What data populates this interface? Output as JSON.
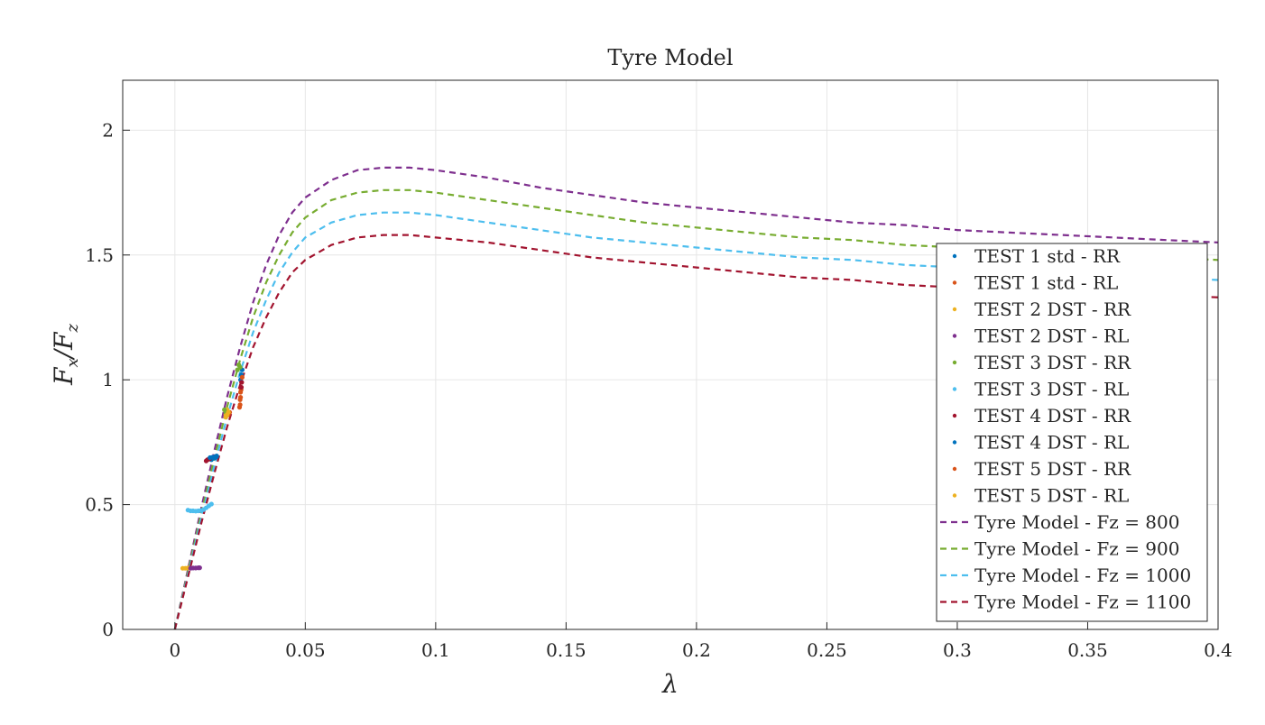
{
  "chart_data": {
    "type": "line",
    "title": "Tyre Model",
    "xlabel": "λ",
    "ylabel": "Fx/Fz",
    "xlim": [
      -0.02,
      0.4
    ],
    "ylim": [
      0,
      2.2
    ],
    "xticks": [
      0,
      0.05,
      0.1,
      0.15,
      0.2,
      0.25,
      0.3,
      0.35,
      0.4
    ],
    "xtick_labels": [
      "0",
      "0.05",
      "0.1",
      "0.15",
      "0.2",
      "0.25",
      "0.3",
      "0.35",
      "0.4"
    ],
    "yticks": [
      0,
      0.5,
      1,
      1.5,
      2
    ],
    "ytick_labels": [
      "0",
      "0.5",
      "1",
      "1.5",
      "2"
    ],
    "grid": true,
    "legend_position": "right",
    "scatter_series": [
      {
        "name": "TEST 1 std - RR",
        "color": "#0072BD",
        "points": [
          [
            0.0145,
            0.685
          ],
          [
            0.015,
            0.69
          ],
          [
            0.0155,
            0.692
          ],
          [
            0.016,
            0.695
          ],
          [
            0.014,
            0.68
          ],
          [
            0.0255,
            1.02
          ],
          [
            0.0258,
            1.04
          ],
          [
            0.0252,
            1.0
          ]
        ]
      },
      {
        "name": "TEST 1 std - RL",
        "color": "#D95319",
        "points": [
          [
            0.025,
            0.9
          ],
          [
            0.0252,
            0.93
          ],
          [
            0.0254,
            0.96
          ],
          [
            0.0256,
            0.99
          ],
          [
            0.0258,
            1.01
          ],
          [
            0.0205,
            0.86
          ],
          [
            0.021,
            0.87
          ]
        ]
      },
      {
        "name": "TEST 2 DST - RR",
        "color": "#EDB120",
        "points": [
          [
            0.003,
            0.245
          ],
          [
            0.004,
            0.245
          ],
          [
            0.005,
            0.246
          ],
          [
            0.0195,
            0.86
          ],
          [
            0.02,
            0.88
          ],
          [
            0.0205,
            0.87
          ]
        ]
      },
      {
        "name": "TEST 2 DST - RL",
        "color": "#7E2F8E",
        "points": [
          [
            0.006,
            0.245
          ],
          [
            0.007,
            0.246
          ],
          [
            0.008,
            0.246
          ],
          [
            0.009,
            0.247
          ],
          [
            0.0095,
            0.247
          ]
        ]
      },
      {
        "name": "TEST 3 DST - RR",
        "color": "#77AC30",
        "points": [
          [
            0.024,
            1.04
          ],
          [
            0.0245,
            1.06
          ],
          [
            0.025,
            1.05
          ],
          [
            0.019,
            0.88
          ],
          [
            0.0195,
            0.87
          ]
        ]
      },
      {
        "name": "TEST 3 DST - RL",
        "color": "#4DBEEE",
        "points": [
          [
            0.005,
            0.478
          ],
          [
            0.006,
            0.475
          ],
          [
            0.007,
            0.475
          ],
          [
            0.008,
            0.474
          ],
          [
            0.009,
            0.475
          ],
          [
            0.01,
            0.476
          ],
          [
            0.011,
            0.48
          ],
          [
            0.012,
            0.487
          ],
          [
            0.013,
            0.495
          ],
          [
            0.014,
            0.502
          ]
        ]
      },
      {
        "name": "TEST 4 DST - RR",
        "color": "#A2142F",
        "points": [
          [
            0.012,
            0.675
          ],
          [
            0.0125,
            0.68
          ],
          [
            0.013,
            0.682
          ],
          [
            0.0135,
            0.685
          ],
          [
            0.0255,
            0.97
          ],
          [
            0.0256,
            0.99
          ]
        ]
      },
      {
        "name": "TEST 4 DST - RL",
        "color": "#0072BD",
        "points": [
          [
            0.0135,
            0.688
          ],
          [
            0.0145,
            0.69
          ],
          [
            0.0155,
            0.688
          ],
          [
            0.016,
            0.692
          ]
        ]
      },
      {
        "name": "TEST 5 DST - RR",
        "color": "#D95319",
        "points": [
          [
            0.0248,
            0.89
          ],
          [
            0.025,
            0.92
          ],
          [
            0.0252,
            0.95
          ]
        ]
      },
      {
        "name": "TEST 5 DST - RL",
        "color": "#EDB120",
        "points": [
          [
            0.0195,
            0.85
          ],
          [
            0.02,
            0.86
          ],
          [
            0.0205,
            0.87
          ]
        ]
      }
    ],
    "model_series": [
      {
        "name": "Tyre Model - Fz = 800",
        "color": "#7E2F8E",
        "x": [
          0,
          0.005,
          0.01,
          0.015,
          0.02,
          0.025,
          0.03,
          0.035,
          0.04,
          0.045,
          0.05,
          0.06,
          0.07,
          0.08,
          0.09,
          0.1,
          0.12,
          0.14,
          0.16,
          0.18,
          0.2,
          0.22,
          0.24,
          0.26,
          0.28,
          0.3,
          0.32,
          0.34,
          0.36,
          0.38,
          0.4
        ],
        "y": [
          0,
          0.24,
          0.48,
          0.71,
          0.93,
          1.13,
          1.31,
          1.46,
          1.58,
          1.67,
          1.73,
          1.8,
          1.84,
          1.85,
          1.85,
          1.84,
          1.81,
          1.77,
          1.74,
          1.71,
          1.69,
          1.67,
          1.65,
          1.63,
          1.62,
          1.6,
          1.59,
          1.58,
          1.57,
          1.56,
          1.55
        ]
      },
      {
        "name": "Tyre Model - Fz = 900",
        "color": "#77AC30",
        "x": [
          0,
          0.005,
          0.01,
          0.015,
          0.02,
          0.025,
          0.03,
          0.035,
          0.04,
          0.045,
          0.05,
          0.06,
          0.07,
          0.08,
          0.09,
          0.1,
          0.12,
          0.14,
          0.16,
          0.18,
          0.2,
          0.22,
          0.24,
          0.26,
          0.28,
          0.3,
          0.32,
          0.34,
          0.36,
          0.38,
          0.4
        ],
        "y": [
          0,
          0.23,
          0.46,
          0.68,
          0.89,
          1.08,
          1.25,
          1.39,
          1.5,
          1.59,
          1.65,
          1.72,
          1.75,
          1.76,
          1.76,
          1.75,
          1.72,
          1.69,
          1.66,
          1.63,
          1.61,
          1.59,
          1.57,
          1.56,
          1.54,
          1.53,
          1.52,
          1.51,
          1.5,
          1.49,
          1.48
        ]
      },
      {
        "name": "Tyre Model - Fz = 1000",
        "color": "#4DBEEE",
        "x": [
          0,
          0.005,
          0.01,
          0.015,
          0.02,
          0.025,
          0.03,
          0.035,
          0.04,
          0.045,
          0.05,
          0.06,
          0.07,
          0.08,
          0.09,
          0.1,
          0.12,
          0.14,
          0.16,
          0.18,
          0.2,
          0.22,
          0.24,
          0.26,
          0.28,
          0.3,
          0.32,
          0.34,
          0.36,
          0.38,
          0.4
        ],
        "y": [
          0,
          0.22,
          0.44,
          0.65,
          0.85,
          1.03,
          1.19,
          1.32,
          1.43,
          1.51,
          1.57,
          1.63,
          1.66,
          1.67,
          1.67,
          1.66,
          1.63,
          1.6,
          1.57,
          1.55,
          1.53,
          1.51,
          1.49,
          1.48,
          1.46,
          1.45,
          1.44,
          1.43,
          1.42,
          1.41,
          1.4
        ]
      },
      {
        "name": "Tyre Model - Fz = 1100",
        "color": "#A2142F",
        "x": [
          0,
          0.005,
          0.01,
          0.015,
          0.02,
          0.025,
          0.03,
          0.035,
          0.04,
          0.045,
          0.05,
          0.06,
          0.07,
          0.08,
          0.09,
          0.1,
          0.12,
          0.14,
          0.16,
          0.18,
          0.2,
          0.22,
          0.24,
          0.26,
          0.28,
          0.3,
          0.32,
          0.34,
          0.36,
          0.38,
          0.4
        ],
        "y": [
          0,
          0.21,
          0.42,
          0.62,
          0.81,
          0.98,
          1.13,
          1.25,
          1.35,
          1.43,
          1.48,
          1.54,
          1.57,
          1.58,
          1.58,
          1.57,
          1.55,
          1.52,
          1.49,
          1.47,
          1.45,
          1.43,
          1.41,
          1.4,
          1.38,
          1.37,
          1.36,
          1.35,
          1.34,
          1.34,
          1.33
        ]
      }
    ]
  }
}
